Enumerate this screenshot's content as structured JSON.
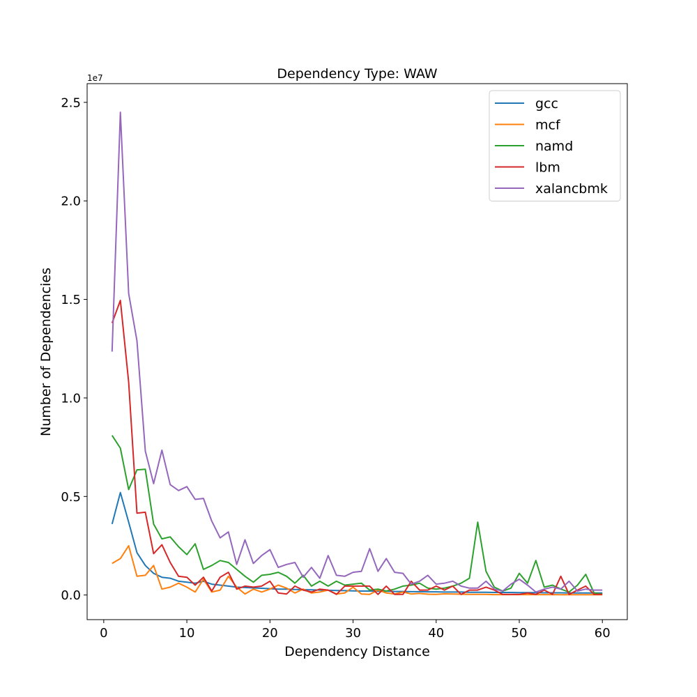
{
  "chart_data": {
    "type": "line",
    "title": "Dependency Type: WAW",
    "xlabel": "Dependency Distance",
    "ylabel": "Number of Dependencies",
    "y_offset_label": "1e7",
    "xlim": [
      -2,
      63
    ],
    "ylim": [
      -1250000,
      25950000
    ],
    "x_ticks": [
      0,
      10,
      20,
      30,
      40,
      50,
      60
    ],
    "x_tick_labels": [
      "0",
      "10",
      "20",
      "30",
      "40",
      "50",
      "60"
    ],
    "y_ticks": [
      0,
      5000000,
      10000000,
      15000000,
      20000000,
      25000000
    ],
    "y_tick_labels": [
      "0.0",
      "0.5",
      "1.0",
      "1.5",
      "2.0",
      "2.5"
    ],
    "grid": false,
    "legend_position": "top-right",
    "x": [
      1,
      2,
      3,
      4,
      5,
      6,
      7,
      8,
      9,
      10,
      11,
      12,
      13,
      14,
      15,
      16,
      17,
      18,
      19,
      20,
      21,
      22,
      23,
      24,
      25,
      26,
      27,
      28,
      29,
      30,
      31,
      32,
      33,
      34,
      35,
      36,
      37,
      38,
      39,
      40,
      41,
      42,
      43,
      44,
      45,
      46,
      47,
      48,
      49,
      50,
      51,
      52,
      53,
      54,
      55,
      56,
      57,
      58,
      59,
      60
    ],
    "series": [
      {
        "name": "gcc",
        "color": "#1f77b4",
        "values": [
          3600000,
          5200000,
          3700000,
          2150000,
          1500000,
          1100000,
          900000,
          850000,
          700000,
          650000,
          600000,
          700000,
          550000,
          500000,
          450000,
          400000,
          380000,
          360000,
          340000,
          320000,
          300000,
          300000,
          280000,
          270000,
          260000,
          250000,
          240000,
          230000,
          220000,
          210000,
          200000,
          200000,
          190000,
          190000,
          180000,
          180000,
          170000,
          170000,
          160000,
          160000,
          150000,
          150000,
          150000,
          140000,
          140000,
          140000,
          130000,
          130000,
          130000,
          120000,
          120000,
          120000,
          110000,
          110000,
          110000,
          100000,
          100000,
          100000,
          100000,
          100000
        ]
      },
      {
        "name": "mcf",
        "color": "#ff7f0e",
        "values": [
          1600000,
          1850000,
          2500000,
          950000,
          1000000,
          1500000,
          300000,
          400000,
          600000,
          400000,
          150000,
          800000,
          150000,
          250000,
          950000,
          400000,
          50000,
          300000,
          150000,
          300000,
          500000,
          350000,
          100000,
          300000,
          100000,
          150000,
          250000,
          50000,
          100000,
          400000,
          50000,
          30000,
          250000,
          100000,
          50000,
          150000,
          50000,
          80000,
          40000,
          30000,
          60000,
          50000,
          40000,
          30000,
          30000,
          30000,
          20000,
          20000,
          20000,
          20000,
          20000,
          20000,
          20000,
          20000,
          15000,
          15000,
          15000,
          15000,
          15000,
          15000
        ]
      },
      {
        "name": "namd",
        "color": "#2ca02c",
        "values": [
          8100000,
          7450000,
          5350000,
          6350000,
          6380000,
          3600000,
          2850000,
          2950000,
          2450000,
          2050000,
          2600000,
          1300000,
          1500000,
          1750000,
          1650000,
          1300000,
          950000,
          650000,
          1000000,
          1050000,
          1150000,
          950000,
          600000,
          1000000,
          450000,
          700000,
          450000,
          700000,
          500000,
          550000,
          600000,
          250000,
          300000,
          200000,
          300000,
          450000,
          500000,
          600000,
          350000,
          300000,
          350000,
          450000,
          600000,
          850000,
          3700000,
          1200000,
          400000,
          200000,
          350000,
          1100000,
          600000,
          1750000,
          400000,
          500000,
          300000,
          150000,
          500000,
          1050000,
          100000,
          50000
        ]
      },
      {
        "name": "lbm",
        "color": "#d62728",
        "values": [
          13800000,
          14950000,
          10800000,
          4150000,
          4200000,
          2100000,
          2550000,
          1650000,
          950000,
          900000,
          500000,
          900000,
          200000,
          900000,
          1150000,
          300000,
          450000,
          400000,
          450000,
          700000,
          100000,
          50000,
          450000,
          250000,
          150000,
          300000,
          250000,
          30000,
          450000,
          450000,
          450000,
          450000,
          30000,
          450000,
          30000,
          30000,
          700000,
          250000,
          250000,
          450000,
          250000,
          450000,
          30000,
          250000,
          250000,
          400000,
          250000,
          30000,
          30000,
          30000,
          100000,
          30000,
          250000,
          30000,
          950000,
          30000,
          250000,
          450000,
          30000,
          30000
        ]
      },
      {
        "name": "xalancbmk",
        "color": "#9467bd",
        "values": [
          12350000,
          24500000,
          15300000,
          12900000,
          7300000,
          5650000,
          7350000,
          5600000,
          5300000,
          5500000,
          4850000,
          4900000,
          3750000,
          2900000,
          3200000,
          1550000,
          2800000,
          1600000,
          2000000,
          2300000,
          1400000,
          1550000,
          1650000,
          900000,
          1400000,
          850000,
          2000000,
          1000000,
          950000,
          1150000,
          1200000,
          2350000,
          1200000,
          1850000,
          1150000,
          1100000,
          550000,
          700000,
          1000000,
          550000,
          600000,
          700000,
          450000,
          350000,
          350000,
          700000,
          300000,
          200000,
          550000,
          800000,
          500000,
          150000,
          300000,
          400000,
          300000,
          700000,
          200000,
          300000,
          250000,
          250000
        ]
      }
    ]
  }
}
